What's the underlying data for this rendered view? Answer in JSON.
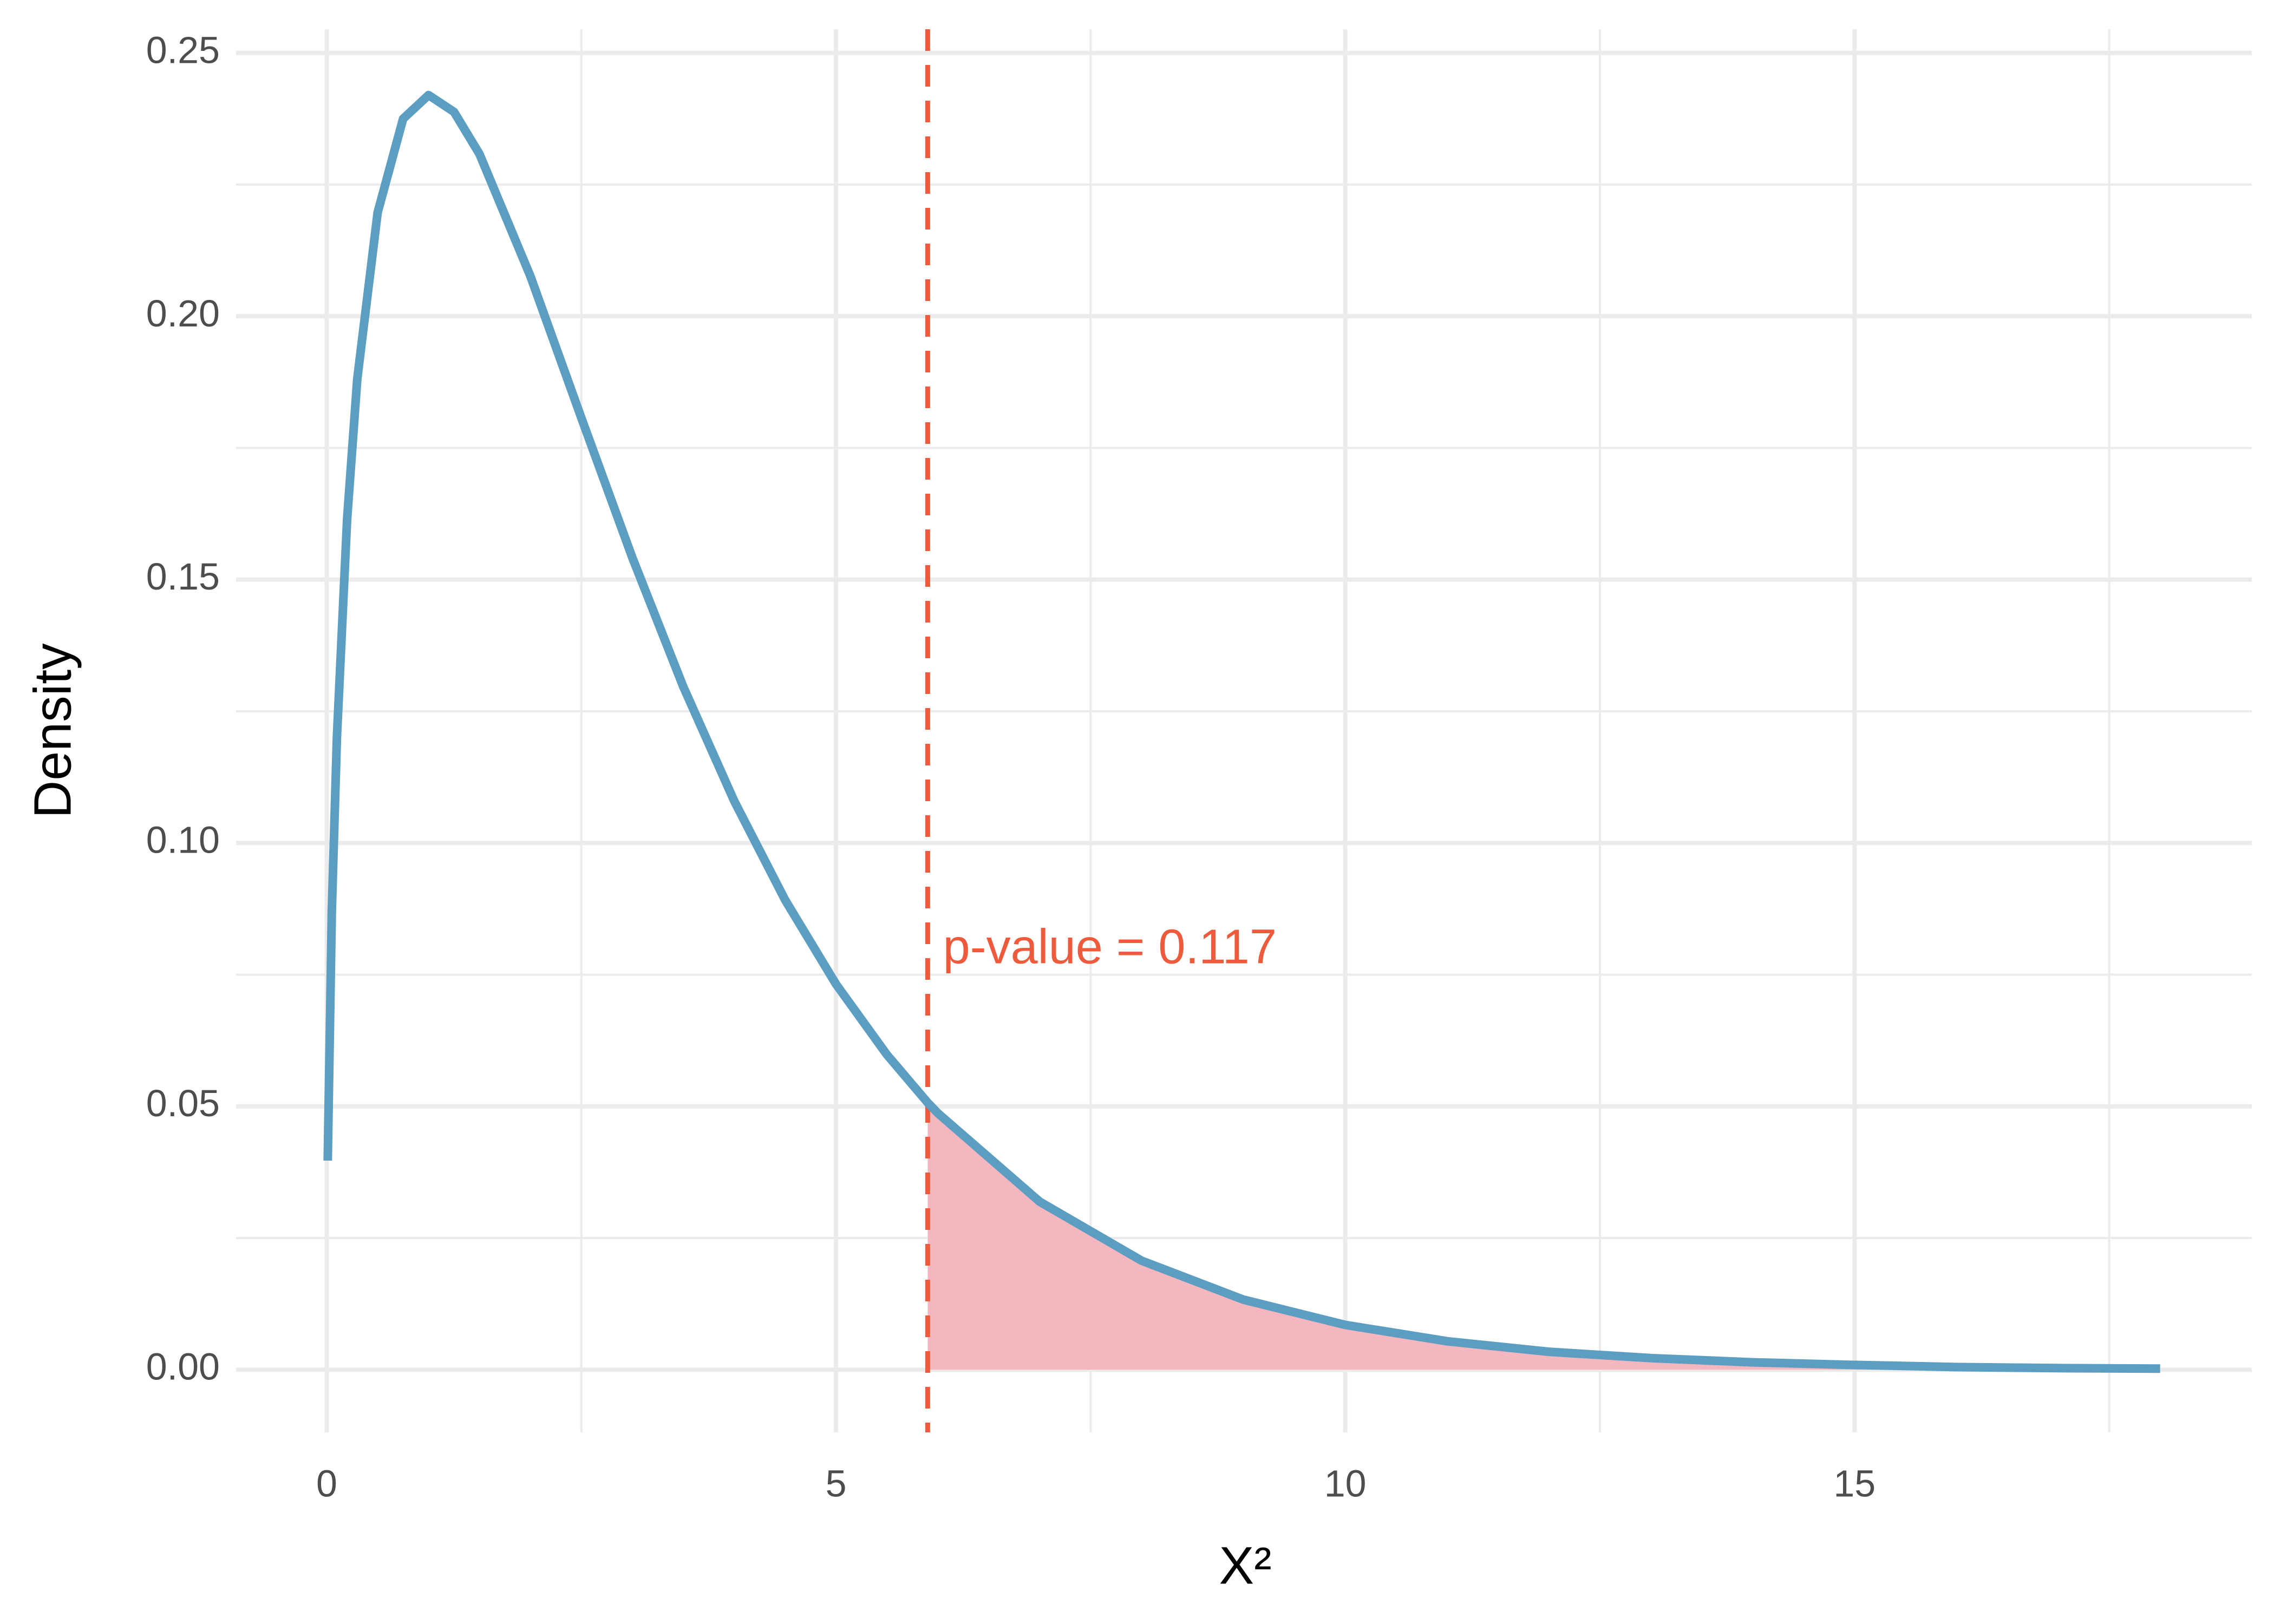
{
  "chart_data": {
    "type": "area_line",
    "xlabel": "X²",
    "ylabel": "Density",
    "x": [
      0.01,
      0.05,
      0.1,
      0.2,
      0.3,
      0.5,
      0.75,
      1,
      1.25,
      1.5,
      2,
      2.5,
      3,
      3.5,
      4,
      4.5,
      5,
      5.5,
      5.9,
      6,
      7,
      8,
      9,
      10,
      11,
      12,
      13,
      14,
      15,
      16,
      17,
      18
    ],
    "series": [
      {
        "color": "#5b9ec1",
        "values": [
          0.0397,
          0.087,
          0.12,
          0.1614,
          0.1881,
          0.2197,
          0.2375,
          0.242,
          0.2388,
          0.2308,
          0.2076,
          0.1807,
          0.1542,
          0.1297,
          0.108,
          0.0892,
          0.0732,
          0.0598,
          0.0507,
          0.0487,
          0.0319,
          0.0207,
          0.0133,
          0.0085,
          0.0054,
          0.0034,
          0.0022,
          0.0014,
          0.0009,
          0.0005,
          0.0003,
          0.0002
        ]
      }
    ],
    "threshold": 5.9,
    "threshold_color": "#ee5a3c",
    "shade_color": "#f4b7c0",
    "annotation": {
      "text": "p-value = 0.117",
      "x": 6.05,
      "y": 0.0796
    },
    "xlim": [
      -0.89,
      18.9
    ],
    "ylim": [
      -0.0119,
      0.2545
    ],
    "xticks": [
      0,
      5,
      10,
      15
    ],
    "yticks": [
      {
        "value": 0,
        "label": "0.00"
      },
      {
        "value": 0.05,
        "label": "0.05"
      },
      {
        "value": 0.1,
        "label": "0.10"
      },
      {
        "value": 0.15,
        "label": "0.15"
      },
      {
        "value": 0.2,
        "label": "0.20"
      },
      {
        "value": 0.25,
        "label": "0.25"
      }
    ],
    "x_minor_grid": [
      2.5,
      7.5,
      12.5,
      17.5
    ],
    "y_minor_grid": [
      0.025,
      0.075,
      0.125,
      0.175,
      0.225
    ],
    "grid": true
  }
}
